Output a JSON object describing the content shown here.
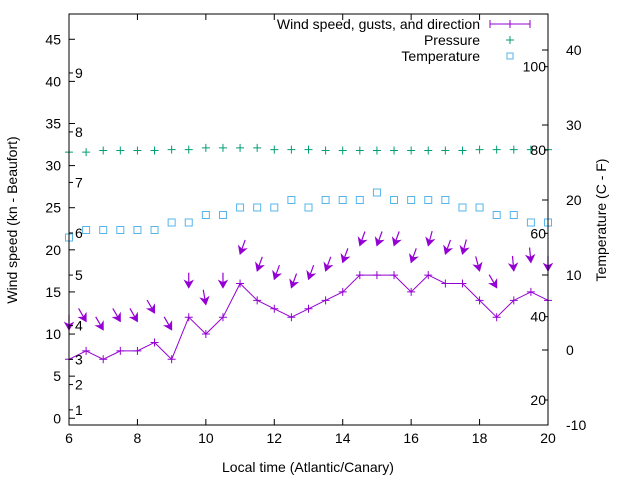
{
  "chart_data": {
    "type": "line",
    "xlabel": "Local time (Atlantic/Canary)",
    "ylabel": "Wind speed (kn - Beaufort)",
    "y2label": "Temperature (C - F)",
    "xlim": [
      6,
      20
    ],
    "ylim": [
      -0.8,
      48
    ],
    "y2lim": [
      -10,
      44.8
    ],
    "grid": false,
    "legend_position": "top-right",
    "x_ticks": [
      "6",
      "8",
      "10",
      "12",
      "14",
      "16",
      "18",
      "20"
    ],
    "x_tick_values": [
      6,
      8,
      10,
      12,
      14,
      16,
      18,
      20
    ],
    "y_ticks": [
      "0",
      "5",
      "10",
      "15",
      "20",
      "25",
      "30",
      "35",
      "40",
      "45"
    ],
    "y_tick_values": [
      0,
      5,
      10,
      15,
      20,
      25,
      30,
      35,
      40,
      45
    ],
    "y2_ticks": [
      "-10",
      "0",
      "10",
      "20",
      "30",
      "40"
    ],
    "y2_tick_values": [
      -10,
      0,
      10,
      20,
      30,
      40
    ],
    "beaufort_labels": [
      "1",
      "2",
      "3",
      "4",
      "5",
      "6",
      "7",
      "8",
      "9"
    ],
    "beaufort_knots": [
      1,
      4,
      7,
      11,
      17,
      22,
      28,
      34,
      41
    ],
    "fahrenheit_labels": [
      "20",
      "40",
      "60",
      "80",
      "100"
    ],
    "fahrenheit_values": [
      20,
      40,
      60,
      80,
      100
    ],
    "x": [
      6,
      6.5,
      7,
      7.5,
      8,
      8.5,
      9,
      9.5,
      10,
      10.5,
      11,
      11.5,
      12,
      12.5,
      13,
      13.5,
      14,
      14.5,
      15,
      15.5,
      16,
      16.5,
      17,
      17.5,
      18,
      18.5,
      19,
      19.5,
      20
    ],
    "series": [
      {
        "name": "Wind speed, gusts, and direction",
        "color": "#9400d3",
        "axis": "y",
        "values": [
          7,
          8,
          7,
          8,
          8,
          9,
          7,
          12,
          10,
          12,
          16,
          14,
          13,
          12,
          13,
          14,
          15,
          17,
          17,
          17,
          15,
          17,
          16,
          16,
          14,
          12,
          14,
          15,
          14
        ],
        "gusts": [
          10,
          11,
          10,
          11,
          11,
          12,
          10,
          15,
          13,
          15,
          19,
          17,
          16,
          15,
          16,
          17,
          18,
          20,
          20,
          20,
          18,
          20,
          19,
          19,
          17,
          15,
          17,
          18,
          17
        ],
        "direction_deg": [
          0,
          330,
          330,
          330,
          330,
          330,
          330,
          0,
          350,
          0,
          20,
          20,
          20,
          20,
          20,
          20,
          20,
          20,
          20,
          20,
          20,
          15,
          20,
          15,
          345,
          330,
          355,
          355,
          0
        ]
      },
      {
        "name": "Pressure",
        "color": "#009e73",
        "axis": "y",
        "values": [
          31.6,
          31.6,
          31.8,
          31.8,
          31.8,
          31.8,
          31.9,
          31.9,
          32.1,
          32.1,
          32.1,
          32.1,
          31.9,
          31.9,
          31.9,
          31.8,
          31.8,
          31.8,
          31.8,
          31.8,
          31.8,
          31.8,
          31.8,
          31.8,
          31.9,
          31.9,
          31.9,
          31.9,
          31.9
        ]
      },
      {
        "name": "Temperature",
        "color": "#56b4e9",
        "axis": "y2",
        "values": [
          15,
          16,
          16,
          16,
          16,
          16,
          17,
          17,
          18,
          18,
          19,
          19,
          19,
          20,
          19,
          20,
          20,
          20,
          21,
          20,
          20,
          20,
          20,
          19,
          19,
          18,
          18,
          17,
          17
        ]
      }
    ]
  }
}
